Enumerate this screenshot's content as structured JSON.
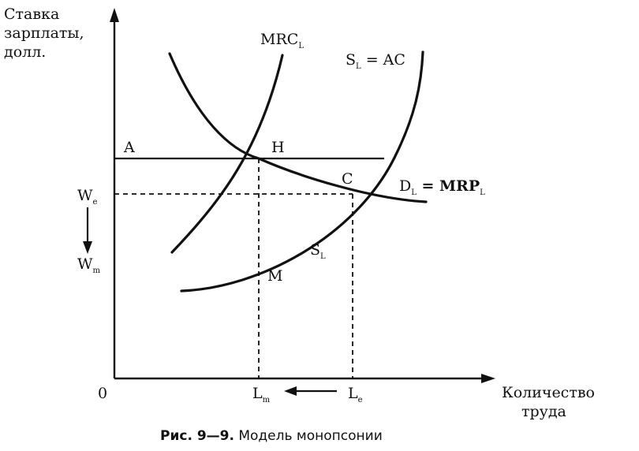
{
  "y_axis_title": [
    "Ставка",
    "зарплаты,",
    "долл."
  ],
  "x_axis_title": [
    "Количество",
    "труда"
  ],
  "origin_label": "0",
  "points": {
    "A": "A",
    "H": "H",
    "C": "C",
    "M": "M"
  },
  "curves": {
    "mrc": {
      "main": "MRC",
      "sub": "L"
    },
    "supply_top": {
      "main": "S",
      "sub": "L",
      "rest": " = AC"
    },
    "demand": {
      "main": "D",
      "sub": "L",
      "mid": " = MRP",
      "sub2": "L"
    },
    "supply_lower": {
      "main": "S",
      "sub": "L"
    }
  },
  "wage_labels": {
    "we": {
      "main": "W",
      "sub": "e"
    },
    "wm": {
      "main": "W",
      "sub": "m"
    }
  },
  "quantity_labels": {
    "lm": {
      "main": "L",
      "sub": "m"
    },
    "le": {
      "main": "L",
      "sub": "e"
    }
  },
  "caption": {
    "number": "Рис. 9—9.",
    "title": " Модель монопсонии"
  }
}
